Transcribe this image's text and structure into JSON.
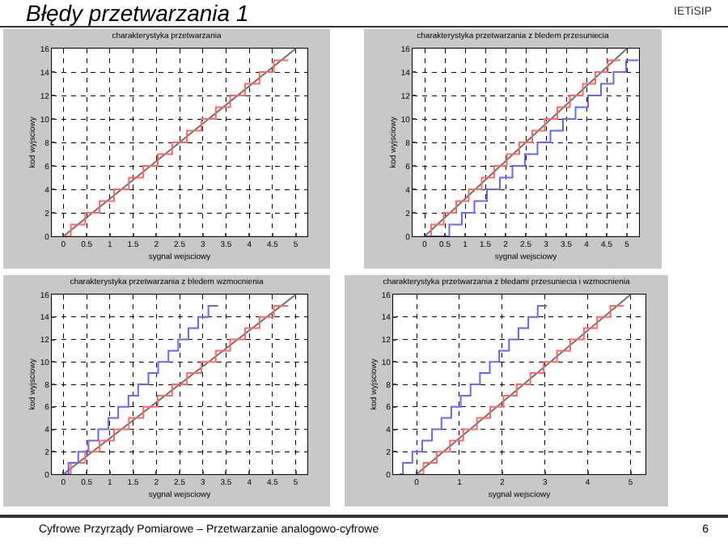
{
  "chart_data": [
    {
      "type": "other",
      "title": "Błędy przetwarzania 1",
      "annotations": [
        "IETiSIP",
        "Cyfrowe Przyrządy Pomiarowe – Przetwarzanie analogowo-cyfrowe",
        "6"
      ]
    },
    {
      "type": "step",
      "title": "charakterystyka przetwarzania",
      "xlabel": "sygnal wejsciowy",
      "ylabel": "kod wyjsciowy",
      "xlim": [
        -0.25,
        5.25
      ],
      "xticks": [
        0,
        0.5,
        1,
        1.5,
        2,
        2.5,
        3,
        3.5,
        4,
        4.5,
        5
      ],
      "ylim": [
        0,
        16
      ],
      "yticks": [
        0,
        2,
        4,
        6,
        8,
        10,
        12,
        14,
        16
      ],
      "grid": true,
      "series": [
        {
          "type": "line",
          "color": "#707070",
          "x": [
            0,
            5
          ],
          "values": [
            0,
            16
          ]
        },
        {
          "type": "step",
          "color": "#ff6666",
          "x": [
            0,
            0.16,
            0.47,
            0.78,
            1.09,
            1.41,
            1.72,
            2.03,
            2.34,
            2.66,
            2.97,
            3.28,
            3.59,
            3.91,
            4.22,
            4.53,
            4.84
          ],
          "values": [
            0,
            1,
            2,
            3,
            4,
            5,
            6,
            7,
            8,
            9,
            10,
            11,
            12,
            13,
            14,
            15,
            15
          ]
        }
      ]
    },
    {
      "type": "step",
      "title": "charakterystyka przetwarzania z bledem przesuniecia",
      "xlabel": "sygnal wejsciowy",
      "ylabel": "kod wyjsciowy",
      "xlim": [
        -0.3,
        5.3
      ],
      "xticks": [
        0,
        0.5,
        1,
        1.5,
        2,
        2.5,
        3,
        3.5,
        4,
        4.5,
        5
      ],
      "ylim": [
        0,
        16
      ],
      "yticks": [
        0,
        2,
        4,
        6,
        8,
        10,
        12,
        14,
        16
      ],
      "grid": true,
      "series": [
        {
          "type": "line",
          "color": "#707070",
          "x": [
            0,
            5
          ],
          "values": [
            0,
            16
          ]
        },
        {
          "type": "step",
          "color": "#ff6666",
          "x": [
            0,
            0.16,
            0.47,
            0.78,
            1.09,
            1.41,
            1.72,
            2.03,
            2.34,
            2.66,
            2.97,
            3.28,
            3.59,
            3.91,
            4.22,
            4.53,
            4.84
          ],
          "values": [
            0,
            1,
            2,
            3,
            4,
            5,
            6,
            7,
            8,
            9,
            10,
            11,
            12,
            13,
            14,
            15,
            15
          ]
        },
        {
          "type": "step",
          "color": "#6666ff",
          "x": [
            0,
            0.61,
            0.92,
            1.23,
            1.54,
            1.86,
            2.17,
            2.48,
            2.79,
            3.11,
            3.42,
            3.73,
            4.04,
            4.36,
            4.67,
            4.98,
            5.29
          ],
          "values": [
            0,
            1,
            2,
            3,
            4,
            5,
            6,
            7,
            8,
            9,
            10,
            11,
            12,
            13,
            14,
            15,
            15
          ]
        }
      ]
    },
    {
      "type": "step",
      "title": "charakterystyka przetwarzania z bledem wzmocnienia",
      "xlabel": "sygnal wejsciowy",
      "ylabel": "kod wyjsciowy",
      "xlim": [
        -0.25,
        5.25
      ],
      "xticks": [
        0,
        0.5,
        1,
        1.5,
        2,
        2.5,
        3,
        3.5,
        4,
        4.5,
        5
      ],
      "ylim": [
        0,
        16
      ],
      "yticks": [
        0,
        2,
        4,
        6,
        8,
        10,
        12,
        14,
        16
      ],
      "grid": true,
      "series": [
        {
          "type": "line",
          "color": "#707070",
          "x": [
            0,
            5
          ],
          "values": [
            0,
            16
          ]
        },
        {
          "type": "step",
          "color": "#ff6666",
          "x": [
            0,
            0.16,
            0.47,
            0.78,
            1.09,
            1.41,
            1.72,
            2.03,
            2.34,
            2.66,
            2.97,
            3.28,
            3.59,
            3.91,
            4.22,
            4.53,
            4.84
          ],
          "values": [
            0,
            1,
            2,
            3,
            4,
            5,
            6,
            7,
            8,
            9,
            10,
            11,
            12,
            13,
            14,
            15,
            15
          ]
        },
        {
          "type": "step",
          "color": "#6666ff",
          "x": [
            0,
            0.11,
            0.32,
            0.54,
            0.75,
            0.97,
            1.18,
            1.4,
            1.61,
            1.83,
            2.04,
            2.26,
            2.47,
            2.69,
            2.9,
            3.12,
            3.33
          ],
          "values": [
            0,
            1,
            2,
            3,
            4,
            5,
            6,
            7,
            8,
            9,
            10,
            11,
            12,
            13,
            14,
            15,
            15
          ]
        }
      ]
    },
    {
      "type": "step",
      "title": "charakterystyka przetwarzania z bledami przesuniecia i wzmocnienia",
      "xlabel": "sygnal wejsciowy",
      "ylabel": "kod wyjsciowy",
      "xlim": [
        -0.55,
        5.35
      ],
      "xticks": [
        0,
        1,
        2,
        3,
        4,
        5
      ],
      "ylim": [
        0,
        16
      ],
      "yticks": [
        0,
        2,
        4,
        6,
        8,
        10,
        12,
        14,
        16
      ],
      "grid": true,
      "series": [
        {
          "type": "line",
          "color": "#707070",
          "x": [
            0,
            5
          ],
          "values": [
            0,
            16
          ]
        },
        {
          "type": "step",
          "color": "#ff6666",
          "x": [
            0,
            0.16,
            0.47,
            0.78,
            1.09,
            1.41,
            1.72,
            2.03,
            2.34,
            2.66,
            2.97,
            3.28,
            3.59,
            3.91,
            4.22,
            4.53,
            4.84
          ],
          "values": [
            0,
            1,
            2,
            3,
            4,
            5,
            6,
            7,
            8,
            9,
            10,
            11,
            12,
            13,
            14,
            15,
            15
          ]
        },
        {
          "type": "step",
          "color": "#6666ff",
          "x": [
            -0.4,
            -0.32,
            -0.1,
            0.13,
            0.36,
            0.58,
            0.81,
            1.03,
            1.26,
            1.48,
            1.71,
            1.93,
            2.16,
            2.38,
            2.61,
            2.83,
            3.05
          ],
          "values": [
            0,
            1,
            2,
            3,
            4,
            5,
            6,
            7,
            8,
            9,
            10,
            11,
            12,
            13,
            14,
            15,
            15
          ]
        }
      ]
    }
  ]
}
